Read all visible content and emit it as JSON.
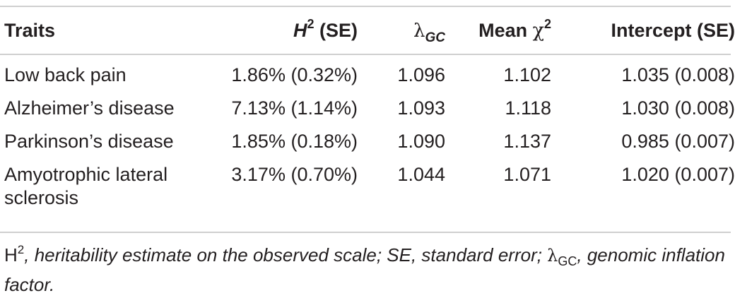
{
  "table": {
    "headers": {
      "traits": "Traits",
      "h2_symbol": "H",
      "h2_sup": "2",
      "h2_suffix": "(SE)",
      "lambda_symbol": "λ",
      "lambda_sub": "GC",
      "mean_label": "Mean ",
      "chi_symbol": "χ",
      "chi_sup": "2",
      "intercept": "Intercept (SE)"
    },
    "rows": [
      {
        "trait": "Low back pain",
        "h2": "1.86% (0.32%)",
        "lambda": "1.096",
        "mean_chi2": "1.102",
        "intercept": "1.035 (0.008)"
      },
      {
        "trait": "Alzheimer’s disease",
        "h2": "7.13% (1.14%)",
        "lambda": "1.093",
        "mean_chi2": "1.118",
        "intercept": "1.030 (0.008)"
      },
      {
        "trait": "Parkinson’s disease",
        "h2": "1.85% (0.18%)",
        "lambda": "1.090",
        "mean_chi2": "1.137",
        "intercept": "0.985 (0.007)"
      },
      {
        "trait": "Amyotrophic lateral sclerosis",
        "h2": "3.17% (0.70%)",
        "lambda": "1.044",
        "mean_chi2": "1.071",
        "intercept": "1.020 (0.007)"
      }
    ]
  },
  "footnote": {
    "h_symbol": "H",
    "h_sup": "2",
    "part1": ", heritability estimate on the observed scale; SE, standard error; ",
    "lambda_symbol": "λ",
    "lambda_sub": "GC",
    "part2": ", genomic inflation factor."
  }
}
